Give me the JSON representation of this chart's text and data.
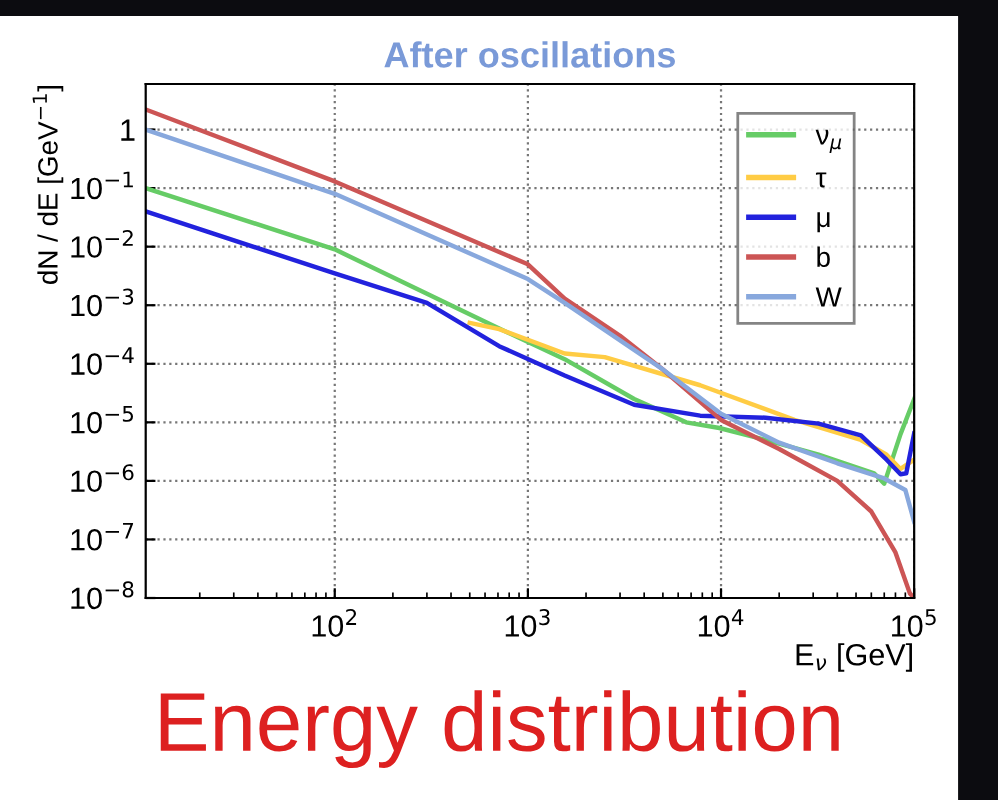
{
  "chart_data": {
    "type": "line",
    "title": "After oscillations",
    "xlabel": "E$_{ν}$ [GeV]",
    "ylabel": "dN / dE [GeV$^{−1}$]",
    "log": "xy",
    "xlim": [
      10.5,
      100000
    ],
    "ylim": [
      1e-08,
      6
    ],
    "xticks": [
      {
        "value": 100,
        "label": "10$^{2}$"
      },
      {
        "value": 1000,
        "label": "10$^{3}$"
      },
      {
        "value": 10000,
        "label": "10$^{4}$"
      },
      {
        "value": 100000,
        "label": "10$^{5}$"
      }
    ],
    "yticks": [
      {
        "value": 1e-08,
        "label": "10$^{−8}$"
      },
      {
        "value": 1e-07,
        "label": "10$^{−7}$"
      },
      {
        "value": 1e-06,
        "label": "10$^{−6}$"
      },
      {
        "value": 1e-05,
        "label": "10$^{−5}$"
      },
      {
        "value": 0.0001,
        "label": "10$^{−4}$"
      },
      {
        "value": 0.001,
        "label": "10$^{−3}$"
      },
      {
        "value": 0.01,
        "label": "10$^{−2}$"
      },
      {
        "value": 0.1,
        "label": "10$^{−1}$"
      },
      1
    ],
    "grid": true,
    "legend": "top right",
    "line_style": "solid",
    "annotations": [
      "Energy distribution"
    ],
    "series": [
      {
        "name": "ν$_{μ}$",
        "color": "#66cc66",
        "x": [
          10.5,
          100,
          710,
          1550,
          3550,
          6600,
          9800,
          17000,
          32000,
          62000,
          70000,
          85000,
          100000
        ],
        "values": [
          0.1,
          0.009,
          0.0004,
          0.00012,
          2.5e-05,
          1e-05,
          8e-06,
          5e-06,
          2.8e-06,
          1.35e-06,
          9e-07,
          6.3e-06,
          2.5e-05
        ]
      },
      {
        "name": "τ",
        "color": "#ffcc44",
        "x": [
          500,
          710,
          1550,
          2500,
          7800,
          24000,
          53000,
          72000,
          85000,
          100000
        ],
        "values": [
          0.0005,
          0.00039,
          0.00015,
          0.00013,
          4.3e-05,
          1.1e-05,
          5e-06,
          2.8e-06,
          1.6e-06,
          2.3e-06
        ]
      },
      {
        "name": "μ",
        "color": "#2222dd",
        "x": [
          10.5,
          100,
          300,
          710,
          1550,
          3550,
          7800,
          17000,
          32000,
          53000,
          72000,
          85000,
          91000,
          100000
        ],
        "values": [
          0.04,
          0.0035,
          0.0011,
          0.0002,
          6.3e-05,
          2e-05,
          1.3e-05,
          1.2e-05,
          9.5e-06,
          6e-06,
          2.3e-06,
          1.3e-06,
          1.35e-06,
          6.5e-06
        ]
      },
      {
        "name": "b",
        "color": "#cc5555",
        "x": [
          10.5,
          100,
          1000,
          1550,
          3000,
          5000,
          10000,
          20000,
          40000,
          60000,
          80000,
          95000,
          100000
        ],
        "values": [
          2.2,
          0.13,
          0.005,
          0.0013,
          0.0003,
          8e-05,
          1.1e-05,
          3.5e-06,
          1e-06,
          3e-07,
          6e-08,
          1.2e-08,
          1e-08
        ]
      },
      {
        "name": "W",
        "color": "#88a8dd",
        "x": [
          10.5,
          100,
          1000,
          1550,
          5000,
          10000,
          20000,
          40000,
          70000,
          90000,
          100000
        ],
        "values": [
          1.0,
          0.08,
          0.0028,
          0.0011,
          8e-05,
          1.4e-05,
          4.5e-06,
          2e-06,
          1.1e-06,
          7e-07,
          2e-07
        ]
      }
    ]
  }
}
